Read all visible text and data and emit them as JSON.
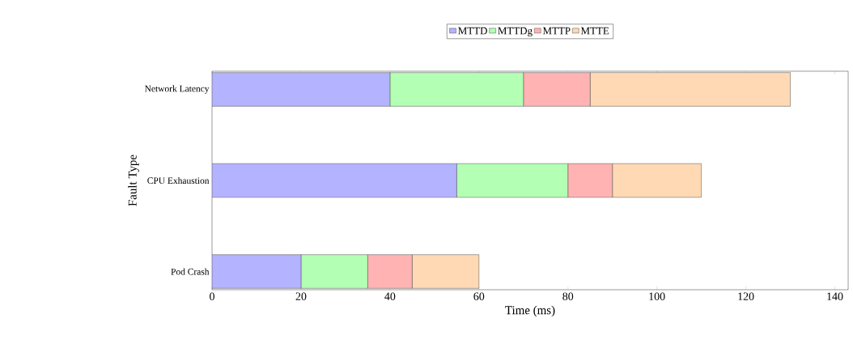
{
  "chart_data": {
    "type": "bar",
    "orientation": "horizontal",
    "stacked": true,
    "xlabel": "Time (ms)",
    "ylabel": "Fault Type",
    "categories": [
      "Network Latency",
      "CPU Exhaustion",
      "Pod Crash"
    ],
    "series": [
      {
        "name": "MTTD",
        "color": "#b3b3ff",
        "values": [
          40,
          55,
          20
        ]
      },
      {
        "name": "MTTDg",
        "color": "#b3ffb3",
        "values": [
          30,
          25,
          15
        ]
      },
      {
        "name": "MTTP",
        "color": "#ffb3b3",
        "values": [
          15,
          10,
          10
        ]
      },
      {
        "name": "MTTE",
        "color": "#ffd9b3",
        "values": [
          45,
          20,
          15
        ]
      }
    ],
    "xlim": [
      0,
      143
    ],
    "xticks": [
      0,
      20,
      40,
      60,
      80,
      100,
      120,
      140
    ],
    "legend": "top",
    "grid": false
  }
}
